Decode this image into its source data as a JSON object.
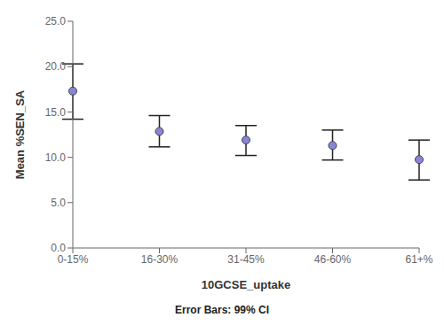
{
  "chart_data": {
    "type": "errorbar",
    "xlabel": "10GCSE_uptake",
    "ylabel": "Mean %SEN_SA",
    "footnote": "Error Bars: 99% CI",
    "categories": [
      "0-15%",
      "16-30%",
      "31-45%",
      "46-60%",
      "61+%"
    ],
    "values": [
      17.3,
      12.85,
      11.9,
      11.3,
      9.75
    ],
    "ci_lower": [
      14.2,
      11.15,
      10.2,
      9.7,
      7.5
    ],
    "ci_upper": [
      20.3,
      14.6,
      13.5,
      13.0,
      11.9
    ],
    "ylim": [
      0.0,
      25.0
    ],
    "yticks": [
      {
        "value": 0.0,
        "label": "0.0"
      },
      {
        "value": 5.0,
        "label": "5.0"
      },
      {
        "value": 10.0,
        "label": "10.0"
      },
      {
        "value": 15.0,
        "label": "15.0"
      },
      {
        "value": 20.0,
        "label": "20.0"
      },
      {
        "value": 25.0,
        "label": "25.0"
      }
    ],
    "grid": false
  }
}
